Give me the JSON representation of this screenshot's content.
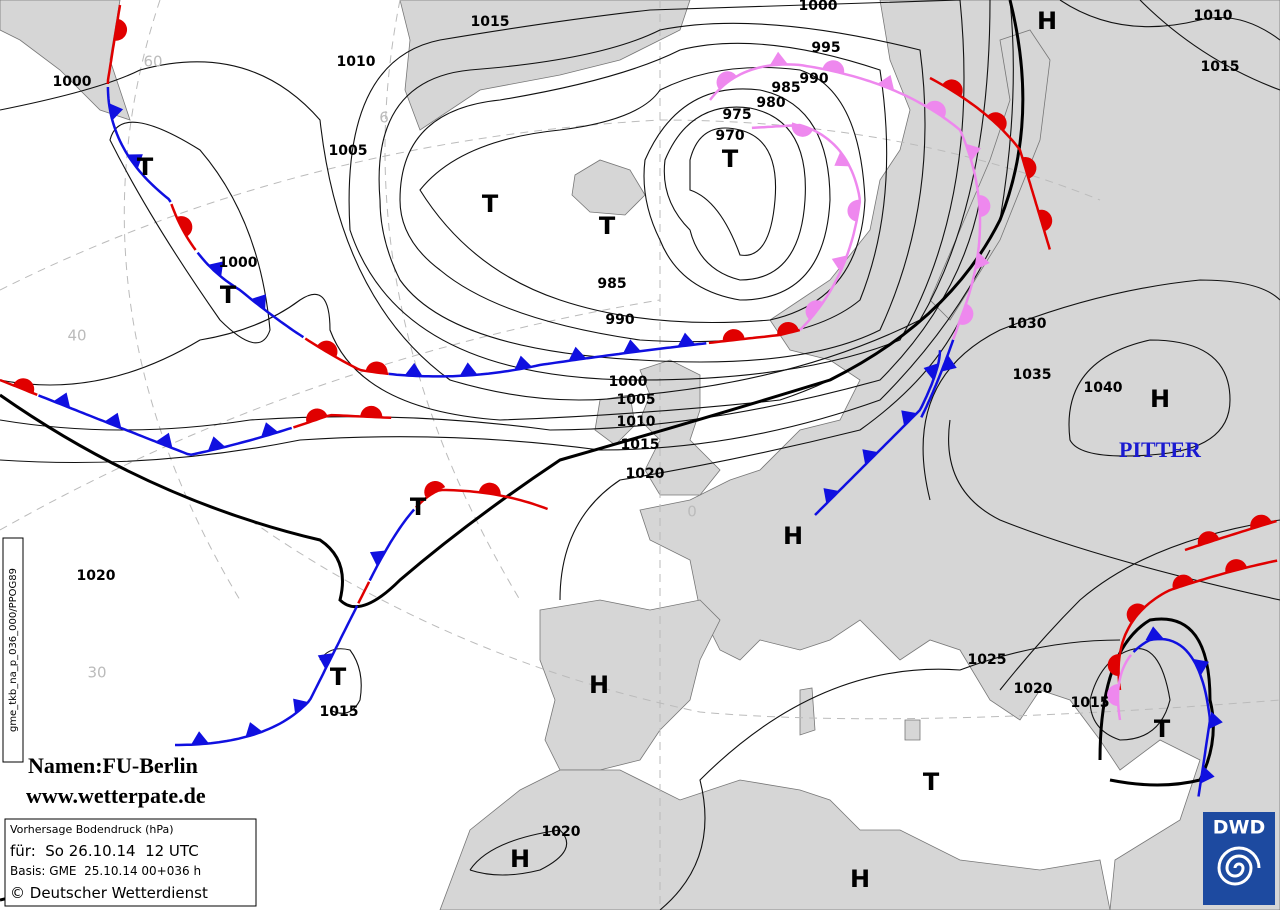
{
  "isobar_labels": [
    "1015",
    "1000",
    "1010",
    "1015",
    "1010",
    "1000",
    "995",
    "990",
    "985",
    "980",
    "975",
    "970",
    "1005",
    "1000",
    "985",
    "990",
    "1000",
    "1005",
    "1010",
    "1015",
    "1020",
    "1030",
    "1035",
    "1040",
    "1020",
    "1025",
    "1020",
    "1015",
    "1015",
    "1020"
  ],
  "centers": [
    "H",
    "T",
    "T",
    "T",
    "T",
    "T",
    "H",
    "H",
    "T",
    "T",
    "H",
    "T",
    "T",
    "H",
    "H"
  ],
  "system_name": "PITTER",
  "latitude_labels": [
    "60",
    "6",
    "40",
    "30",
    "0"
  ],
  "credits": {
    "names": "Namen:FU-Berlin",
    "website": "www.wetterpate.de"
  },
  "info_box": {
    "product": "Vorhersage Bodendruck (hPa)",
    "valid": "für:  So 26.10.14  12 UTC",
    "basis": "Basis: GME  25.10.14 00+036 h",
    "copyright": "© Deutscher Wetterdienst"
  },
  "logo": "DWD",
  "product_code": "gme_tkb_na_p_036_000/PPOG89"
}
